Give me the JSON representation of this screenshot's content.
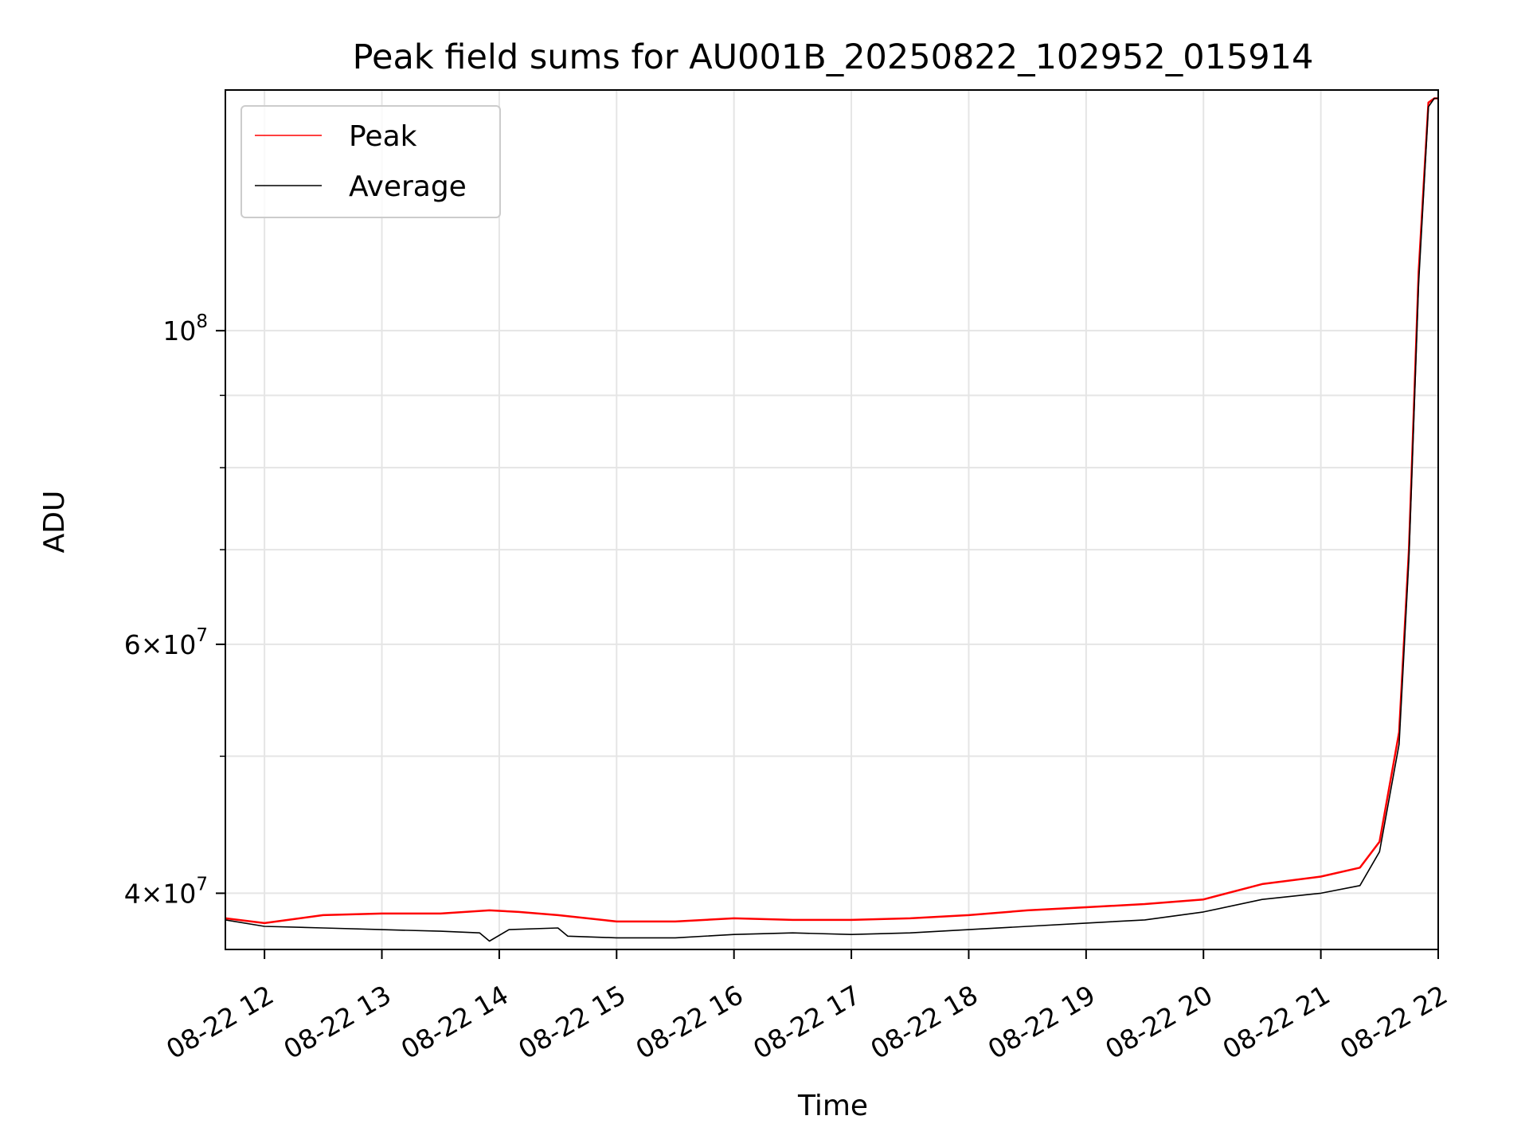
{
  "chart_data": {
    "type": "line",
    "title": "Peak field sums for AU001B_20250822_102952_015914",
    "xlabel": "Time",
    "ylabel": "ADU",
    "y_scale": "log",
    "xlim": [
      "2025-08-22 11:40",
      "2025-08-22 22:00"
    ],
    "ylim": [
      36500000,
      148000000
    ],
    "x_ticks": [
      "2025-08-22 12:00",
      "2025-08-22 13:00",
      "2025-08-22 14:00",
      "2025-08-22 15:00",
      "2025-08-22 16:00",
      "2025-08-22 17:00",
      "2025-08-22 18:00",
      "2025-08-22 19:00",
      "2025-08-22 20:00",
      "2025-08-22 21:00",
      "2025-08-22 22:00"
    ],
    "x_tick_labels": [
      "08-22 12",
      "08-22 13",
      "08-22 14",
      "08-22 15",
      "08-22 16",
      "08-22 17",
      "08-22 18",
      "08-22 19",
      "08-22 20",
      "08-22 21",
      "08-22 22"
    ],
    "y_major_ticks": [
      40000000,
      60000000,
      100000000
    ],
    "y_major_tick_labels": [
      {
        "base": "4",
        "exp": "7"
      },
      {
        "base": "6",
        "exp": "7"
      },
      {
        "base": "",
        "exp": "8"
      }
    ],
    "y_minor_ticks": [
      50000000,
      70000000,
      80000000,
      90000000
    ],
    "grid": true,
    "legend": {
      "placement": "upper-left",
      "entries": [
        "Peak",
        "Average"
      ]
    },
    "series": [
      {
        "name": "Peak",
        "color": "#ff0000",
        "x": [
          "2025-08-22 11:40",
          "2025-08-22 12:00",
          "2025-08-22 12:30",
          "2025-08-22 13:00",
          "2025-08-22 13:30",
          "2025-08-22 13:55",
          "2025-08-22 14:10",
          "2025-08-22 14:30",
          "2025-08-22 15:00",
          "2025-08-22 15:30",
          "2025-08-22 16:00",
          "2025-08-22 16:30",
          "2025-08-22 17:00",
          "2025-08-22 17:30",
          "2025-08-22 18:00",
          "2025-08-22 18:30",
          "2025-08-22 19:00",
          "2025-08-22 19:30",
          "2025-08-22 20:00",
          "2025-08-22 20:30",
          "2025-08-22 21:00",
          "2025-08-22 21:20",
          "2025-08-22 21:30",
          "2025-08-22 21:40",
          "2025-08-22 21:45",
          "2025-08-22 21:50",
          "2025-08-22 21:55",
          "2025-08-22 21:58",
          "2025-08-22 22:00"
        ],
        "values": [
          38400000,
          38100000,
          38600000,
          38700000,
          38700000,
          38900000,
          38800000,
          38600000,
          38200000,
          38200000,
          38400000,
          38300000,
          38300000,
          38400000,
          38600000,
          38900000,
          39100000,
          39300000,
          39600000,
          40600000,
          41100000,
          41700000,
          43500000,
          52000000,
          70000000,
          110000000,
          145000000,
          146000000,
          146000000
        ]
      },
      {
        "name": "Average",
        "color": "#000000",
        "x": [
          "2025-08-22 11:40",
          "2025-08-22 12:00",
          "2025-08-22 12:30",
          "2025-08-22 13:00",
          "2025-08-22 13:30",
          "2025-08-22 13:50",
          "2025-08-22 13:55",
          "2025-08-22 14:05",
          "2025-08-22 14:30",
          "2025-08-22 14:35",
          "2025-08-22 15:00",
          "2025-08-22 15:30",
          "2025-08-22 16:00",
          "2025-08-22 16:30",
          "2025-08-22 17:00",
          "2025-08-22 17:30",
          "2025-08-22 18:00",
          "2025-08-22 18:30",
          "2025-08-22 19:00",
          "2025-08-22 19:30",
          "2025-08-22 20:00",
          "2025-08-22 20:30",
          "2025-08-22 21:00",
          "2025-08-22 21:20",
          "2025-08-22 21:30",
          "2025-08-22 21:40",
          "2025-08-22 21:45",
          "2025-08-22 21:50",
          "2025-08-22 21:55",
          "2025-08-22 21:58",
          "2025-08-22 22:00"
        ],
        "values": [
          38300000,
          37900000,
          37800000,
          37700000,
          37600000,
          37500000,
          37000000,
          37700000,
          37800000,
          37300000,
          37200000,
          37200000,
          37400000,
          37500000,
          37400000,
          37500000,
          37700000,
          37900000,
          38100000,
          38300000,
          38800000,
          39600000,
          40000000,
          40500000,
          42800000,
          51000000,
          69000000,
          108000000,
          144000000,
          146000000,
          146000000
        ]
      }
    ]
  }
}
